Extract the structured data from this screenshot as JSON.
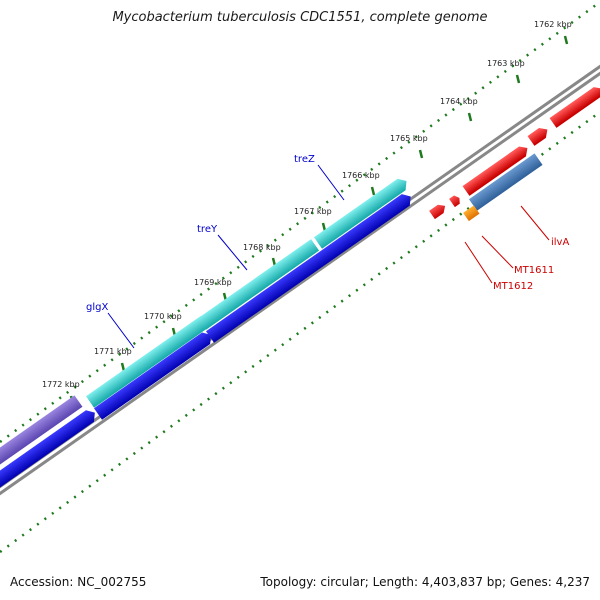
{
  "title": "Mycobacterium tuberculosis CDC1551, complete genome",
  "footer": {
    "accession": "Accession: NC_002755",
    "topology": "Topology: circular; Length: 4,403,837 bp; Genes: 4,237"
  },
  "colors": {
    "backbone": "#7a7a7a",
    "ticks": "#1f7a1f",
    "gene_label": "#0000cc",
    "annotation_label": "#cc0000"
  },
  "tick_labels": [
    "1762 kbp",
    "1763 kbp",
    "1764 kbp",
    "1765 kbp",
    "1766 kbp",
    "1767 kbp",
    "1768 kbp",
    "1769 kbp",
    "1770 kbp",
    "1771 kbp",
    "1772 kbp"
  ],
  "gene_labels": [
    "treZ",
    "treY",
    "glgX"
  ],
  "annotation_labels": [
    "ilvA",
    "MT1611",
    "MT1612"
  ]
}
